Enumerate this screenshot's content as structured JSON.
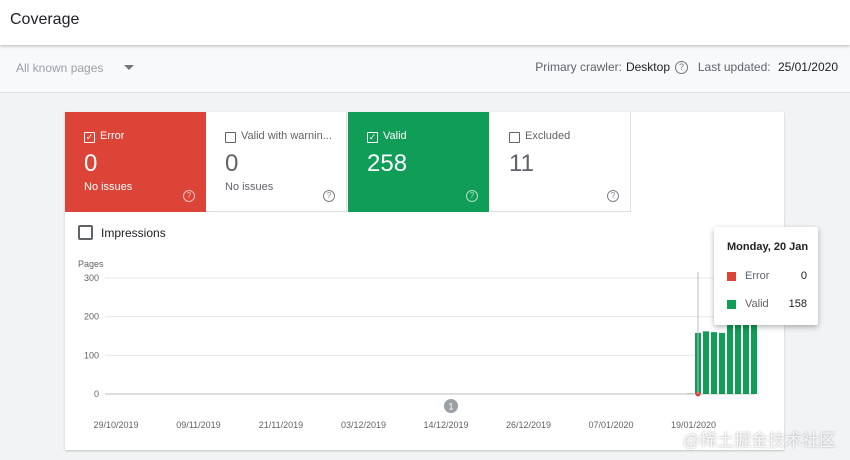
{
  "header": {
    "title": "Coverage"
  },
  "filter": {
    "selected": "All known pages",
    "crawler_label": "Primary crawler:",
    "crawler_value": "Desktop",
    "updated_label": "Last updated:",
    "updated_value": "25/01/2020"
  },
  "tiles": [
    {
      "label": "Error",
      "value": "0",
      "sub": "No issues",
      "checked": true,
      "color": "#db4437"
    },
    {
      "label": "Valid with warnin...",
      "value": "0",
      "sub": "No issues",
      "checked": false,
      "color": "#ffffff"
    },
    {
      "label": "Valid",
      "value": "258",
      "sub": "",
      "checked": true,
      "color": "#0f9d58"
    },
    {
      "label": "Excluded",
      "value": "11",
      "sub": "",
      "checked": false,
      "color": "#ffffff"
    }
  ],
  "impressions": {
    "label": "Impressions",
    "checked": false
  },
  "chart_data": {
    "type": "bar",
    "ylabel": "Pages",
    "ylim": [
      0,
      300
    ],
    "yticks": [
      "300",
      "200",
      "100",
      "0"
    ],
    "xtick_labels": [
      "29/10/2019",
      "09/11/2019",
      "21/11/2019",
      "03/12/2019",
      "14/12/2019",
      "26/12/2019",
      "07/01/2020",
      "19/01/2020"
    ],
    "annotation_marker": "1",
    "series": [
      {
        "name": "Error",
        "color": "#db4437",
        "values": [
          0,
          0,
          0,
          0,
          0,
          0,
          0,
          0,
          0
        ]
      },
      {
        "name": "Valid",
        "color": "#0f9d58",
        "values": [
          0,
          158,
          162,
          160,
          158,
          210,
          245,
          250,
          255
        ]
      }
    ],
    "grid": true
  },
  "tooltip": {
    "date": "Monday, 20 Jan",
    "rows": [
      {
        "label": "Error",
        "value": "0",
        "color": "#db4437"
      },
      {
        "label": "Valid",
        "value": "158",
        "color": "#0f9d58"
      }
    ]
  },
  "watermark": "@稀土掘金技术社区"
}
